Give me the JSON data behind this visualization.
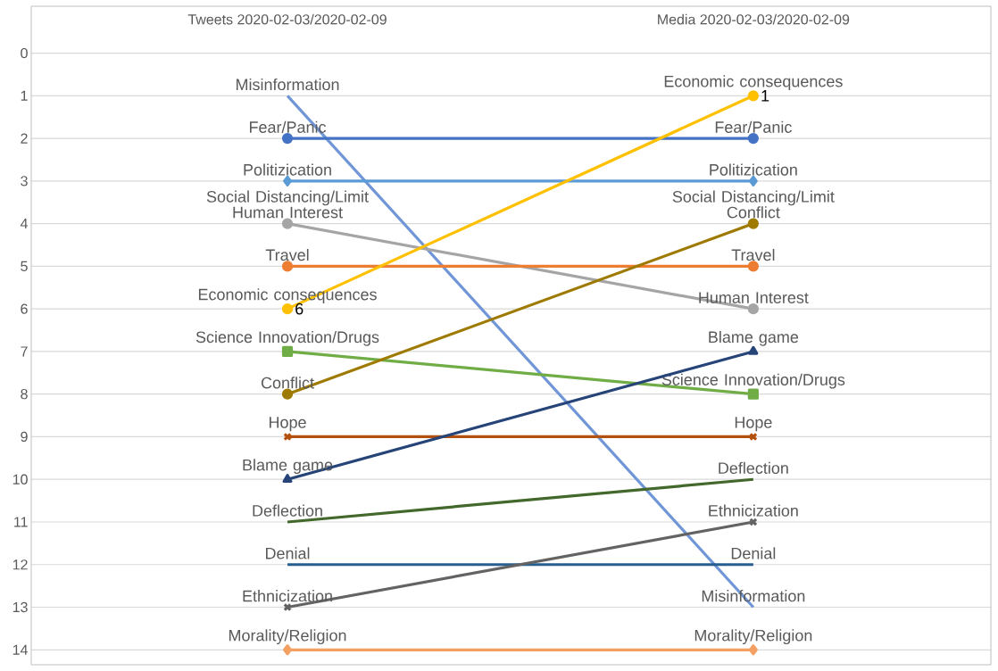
{
  "chart_data": {
    "type": "line",
    "categories": [
      "Tweets 2020-02-03/2020-02-09",
      "Media 2020-02-03/2020-02-09"
    ],
    "ylim": [
      14.35,
      -1.1
    ],
    "yticks": [
      0,
      1,
      2,
      3,
      4,
      5,
      6,
      7,
      8,
      9,
      10,
      11,
      12,
      13,
      14
    ],
    "grid": "y",
    "series": [
      {
        "name": "Misinformation",
        "color": "#7096d8",
        "values": [
          1,
          13
        ],
        "marker": "none"
      },
      {
        "name": "Fear/Panic",
        "color": "#4472c4",
        "values": [
          2,
          2
        ],
        "marker": "circle"
      },
      {
        "name": "Politizication",
        "color": "#5b9bd5",
        "values": [
          3,
          3
        ],
        "marker": "diamond"
      },
      {
        "name": "Human Interest",
        "color": "#a5a5a5",
        "values": [
          4,
          6
        ],
        "marker": "circle"
      },
      {
        "name": "Travel",
        "color": "#ed7d31",
        "values": [
          5,
          5
        ],
        "marker": "circle"
      },
      {
        "name": "Economic consequences",
        "color": "#ffc000",
        "values": [
          6,
          1
        ],
        "marker": "circle",
        "value_labels": [
          "6",
          "1"
        ]
      },
      {
        "name": "Science Innovation/Drugs",
        "color": "#70ad47",
        "values": [
          7,
          8
        ],
        "marker": "square"
      },
      {
        "name": "Conflict",
        "color": "#9e7a00",
        "values": [
          8,
          4
        ],
        "marker": "circle"
      },
      {
        "name": "Hope",
        "color": "#b4500f",
        "values": [
          9,
          9
        ],
        "marker": "cross"
      },
      {
        "name": "Blame game",
        "color": "#264478",
        "values": [
          10,
          7
        ],
        "marker": "triangle"
      },
      {
        "name": "Deflection",
        "color": "#43682b",
        "values": [
          11,
          10
        ],
        "marker": "none"
      },
      {
        "name": "Denial",
        "color": "#255e91",
        "values": [
          12,
          12
        ],
        "marker": "none"
      },
      {
        "name": "Ethnicization",
        "color": "#636363",
        "values": [
          13,
          11
        ],
        "marker": "cross"
      },
      {
        "name": "Morality/Religion",
        "color": "#f4a062",
        "values": [
          14,
          14
        ],
        "marker": "diamond"
      }
    ],
    "annotations": [
      "Social Distancing/Limit",
      "Social Distancing/Limit"
    ]
  }
}
